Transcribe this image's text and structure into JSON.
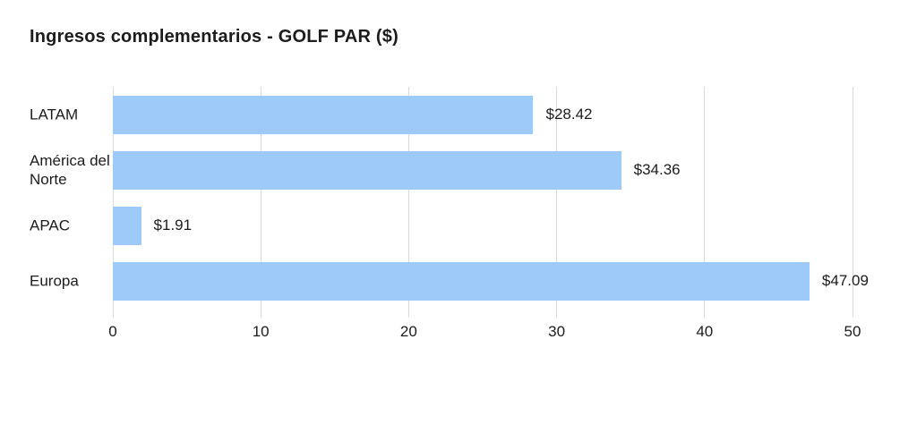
{
  "title": "Ingresos complementarios - GOLF PAR ($)",
  "colors": {
    "bar": "#9dcaf8",
    "grid": "#d9d9d9",
    "text": "#1c1c1c",
    "background": "#ffffff"
  },
  "chart_data": {
    "type": "bar",
    "orientation": "horizontal",
    "title": "Ingresos complementarios - GOLF PAR ($)",
    "categories": [
      "LATAM",
      "América del Norte",
      "APAC",
      "Europa"
    ],
    "values": [
      28.42,
      34.36,
      1.91,
      47.09
    ],
    "value_labels": [
      "$28.42",
      "$34.36",
      "$1.91",
      "$47.09"
    ],
    "xlabel": "",
    "ylabel": "",
    "xlim": [
      0,
      50
    ],
    "xticks": [
      0,
      10,
      20,
      30,
      40,
      50
    ],
    "xtick_labels": [
      "0",
      "10",
      "20",
      "30",
      "40",
      "50"
    ],
    "grid": true,
    "legend": false
  }
}
